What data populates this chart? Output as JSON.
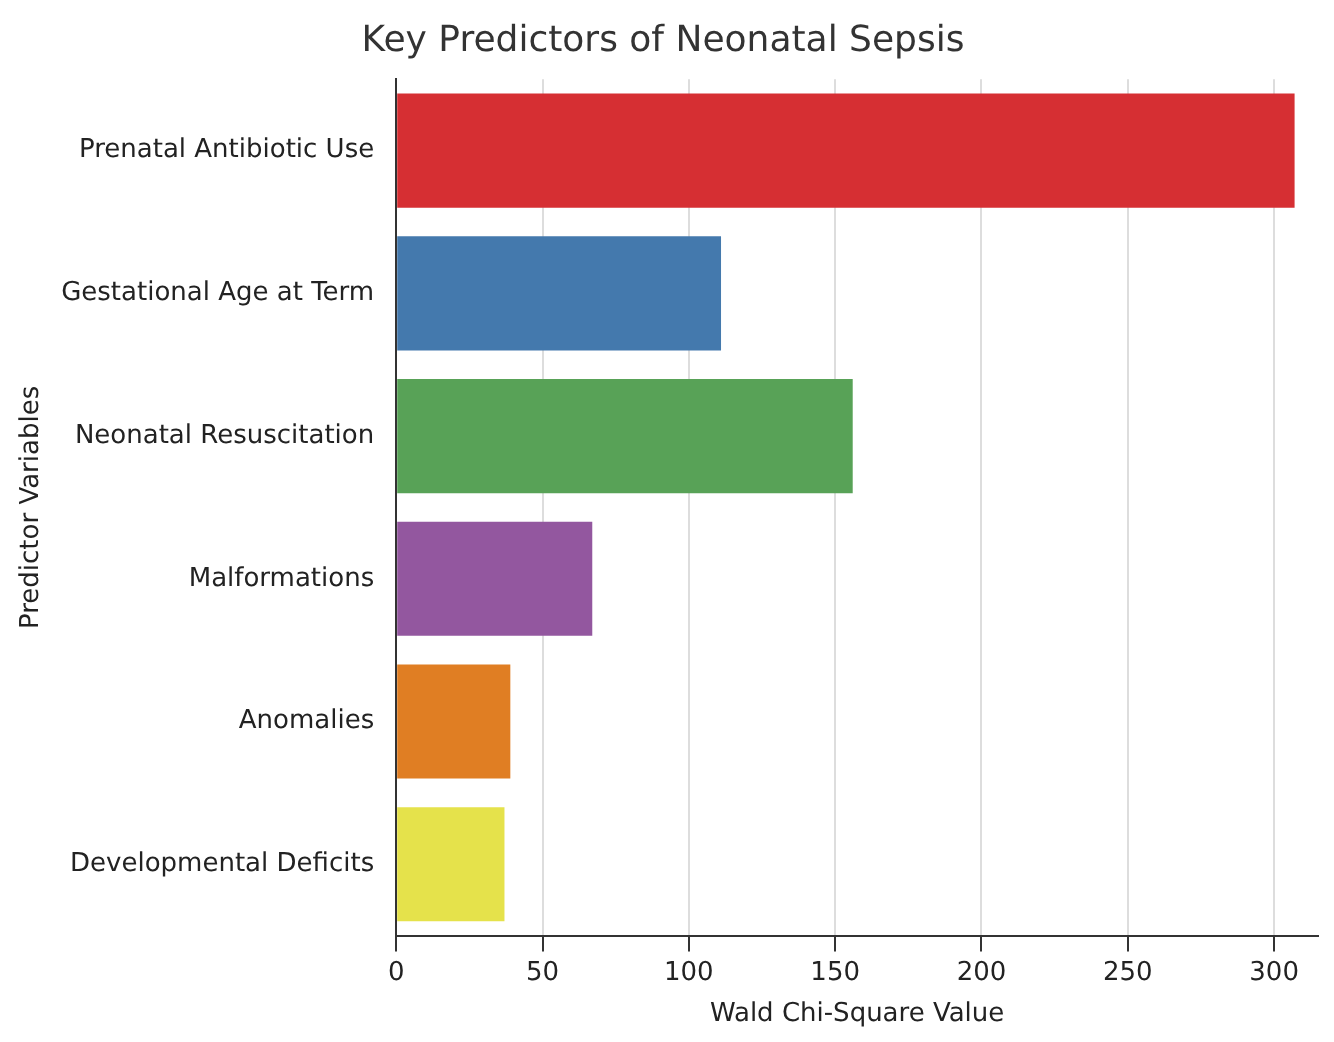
{
  "chart_data": {
    "type": "bar",
    "orientation": "horizontal",
    "title": "Key Predictors of Neonatal Sepsis",
    "xlabel": "Wald Chi-Square Value",
    "ylabel": "Predictor Variables",
    "categories": [
      "Prenatal Antibiotic Use",
      "Gestational Age at Term",
      "Neonatal Resuscitation",
      "Malformations",
      "Anomalies",
      "Developmental Deficits"
    ],
    "values": [
      307,
      111,
      156,
      67,
      39,
      37
    ],
    "colors": [
      "#d62f33",
      "#4479ad",
      "#58a257",
      "#93579f",
      "#e07e23",
      "#e5e24b"
    ],
    "xlim": [
      0,
      315
    ],
    "xticks": [
      0,
      50,
      100,
      150,
      200,
      250,
      300
    ],
    "grid": "x",
    "legend": false
  }
}
